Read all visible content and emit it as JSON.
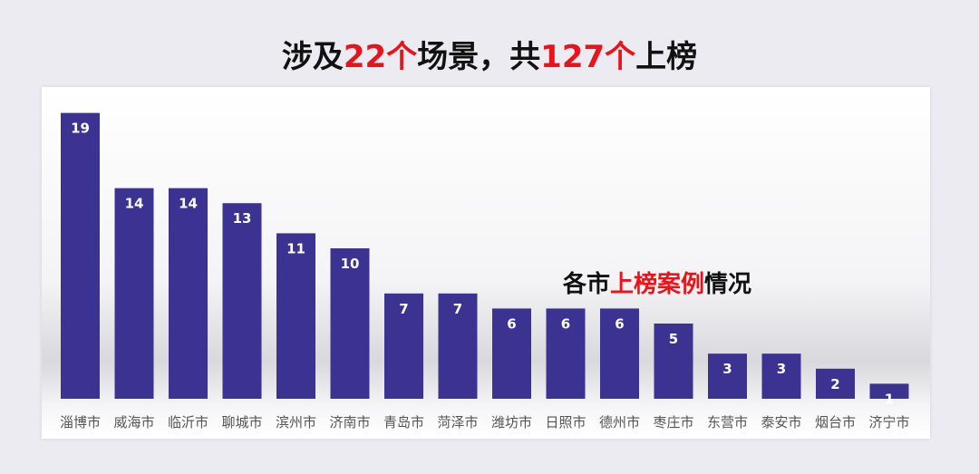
{
  "headline": {
    "part1": "涉及",
    "part2": "22个",
    "part3": "场景，共",
    "part4": "127个",
    "part5": "上榜"
  },
  "colors": {
    "bar": "#3c3291",
    "highlight": "#e8141b",
    "text": "#111111"
  },
  "chart_data": {
    "type": "bar",
    "title": "各市上榜案例情况",
    "title_parts": [
      "各市",
      "上榜案例",
      "情况"
    ],
    "xlabel": "",
    "ylabel": "",
    "ylim": [
      0,
      20
    ],
    "grid": false,
    "legend": "none",
    "categories": [
      "淄博市",
      "威海市",
      "临沂市",
      "聊城市",
      "滨州市",
      "济南市",
      "青岛市",
      "菏泽市",
      "潍坊市",
      "日照市",
      "德州市",
      "枣庄市",
      "东营市",
      "泰安市",
      "烟台市",
      "济宁市"
    ],
    "values": [
      19,
      14,
      14,
      13,
      11,
      10,
      7,
      7,
      6,
      6,
      6,
      5,
      3,
      3,
      2,
      1
    ]
  }
}
